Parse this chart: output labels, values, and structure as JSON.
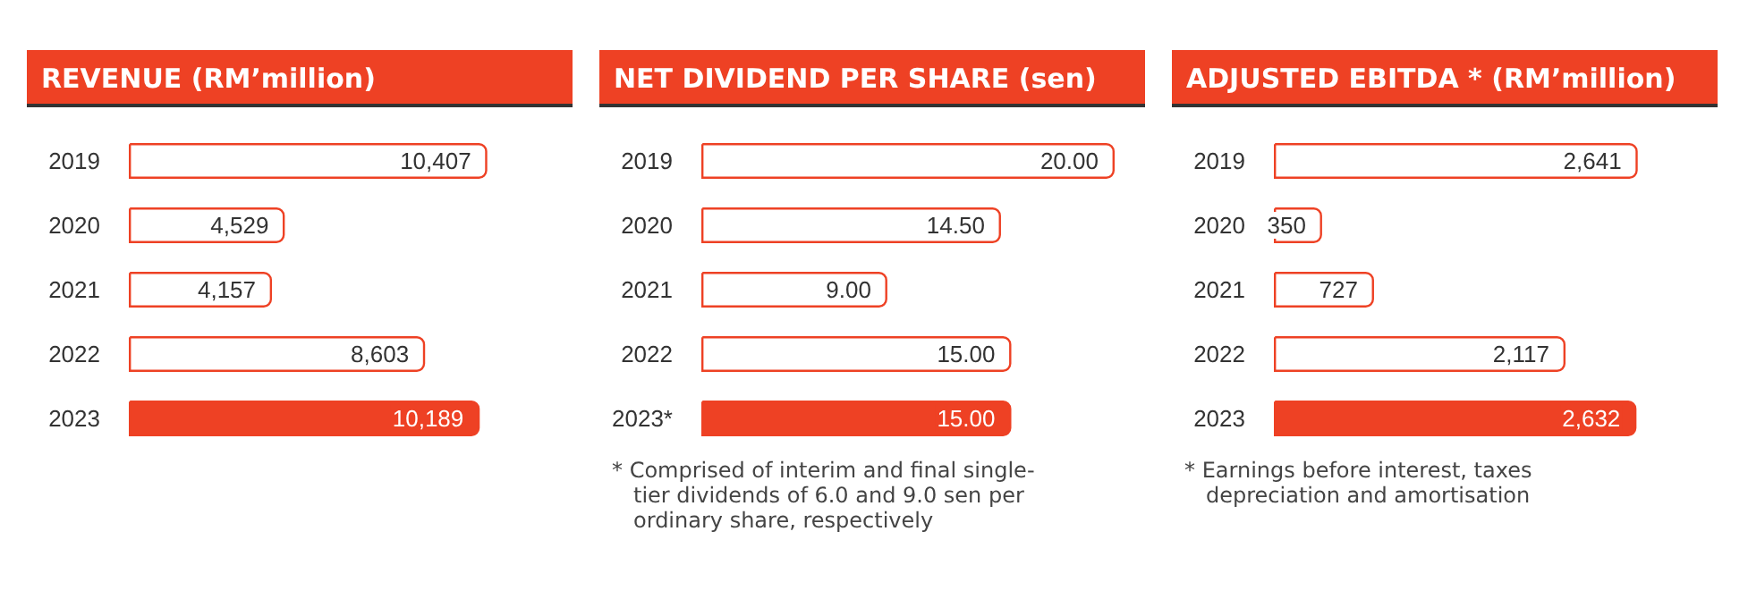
{
  "chart_data": [
    {
      "type": "bar",
      "orientation": "horizontal",
      "title": "REVENUE (RM’million)",
      "categories": [
        "2019",
        "2020",
        "2021",
        "2022",
        "2023"
      ],
      "values": [
        10407,
        4529,
        4157,
        8603,
        10189
      ],
      "value_labels": [
        "10,407",
        "4,529",
        "4,157",
        "8,603",
        "10,189"
      ],
      "color": "#ee4124",
      "colors": [
        "#ffffff",
        "#ffffff",
        "#ffffff",
        "#ffffff",
        "#ee4124"
      ]
    },
    {
      "type": "bar",
      "orientation": "horizontal",
      "title": "NET DIVIDEND PER SHARE (sen)",
      "categories": [
        "2019",
        "2020",
        "2021",
        "2022",
        "2023*"
      ],
      "values": [
        20,
        14.5,
        9,
        15,
        15
      ],
      "value_labels": [
        "20.00",
        "14.50",
        "9.00",
        "15.00",
        "15.00"
      ],
      "color": "#ee4124",
      "colors": [
        "#ffffff",
        "#ffffff",
        "#ffffff",
        "#ffffff",
        "#ee4124"
      ],
      "annotations": [
        "* Comprised of interim and final single-tier dividends of 6.0 and 9.0 sen per ordinary share, respectively"
      ]
    },
    {
      "type": "bar",
      "orientation": "horizontal",
      "title": "ADJUSTED EBITDA * (RM’million)",
      "categories": [
        "2019",
        "2020",
        "2021",
        "2022",
        "2023"
      ],
      "values": [
        2641,
        350,
        727,
        2117,
        2632
      ],
      "value_labels": [
        "2,641",
        "350",
        "727",
        "2,117",
        "2,632"
      ],
      "color": "#ee4124",
      "colors": [
        "#ffffff",
        "#ffffff",
        "#ffffff",
        "#ffffff",
        "#ee4124"
      ],
      "annotations": [
        "* Earnings before interest, taxes depreciation and amortisation"
      ]
    }
  ]
}
